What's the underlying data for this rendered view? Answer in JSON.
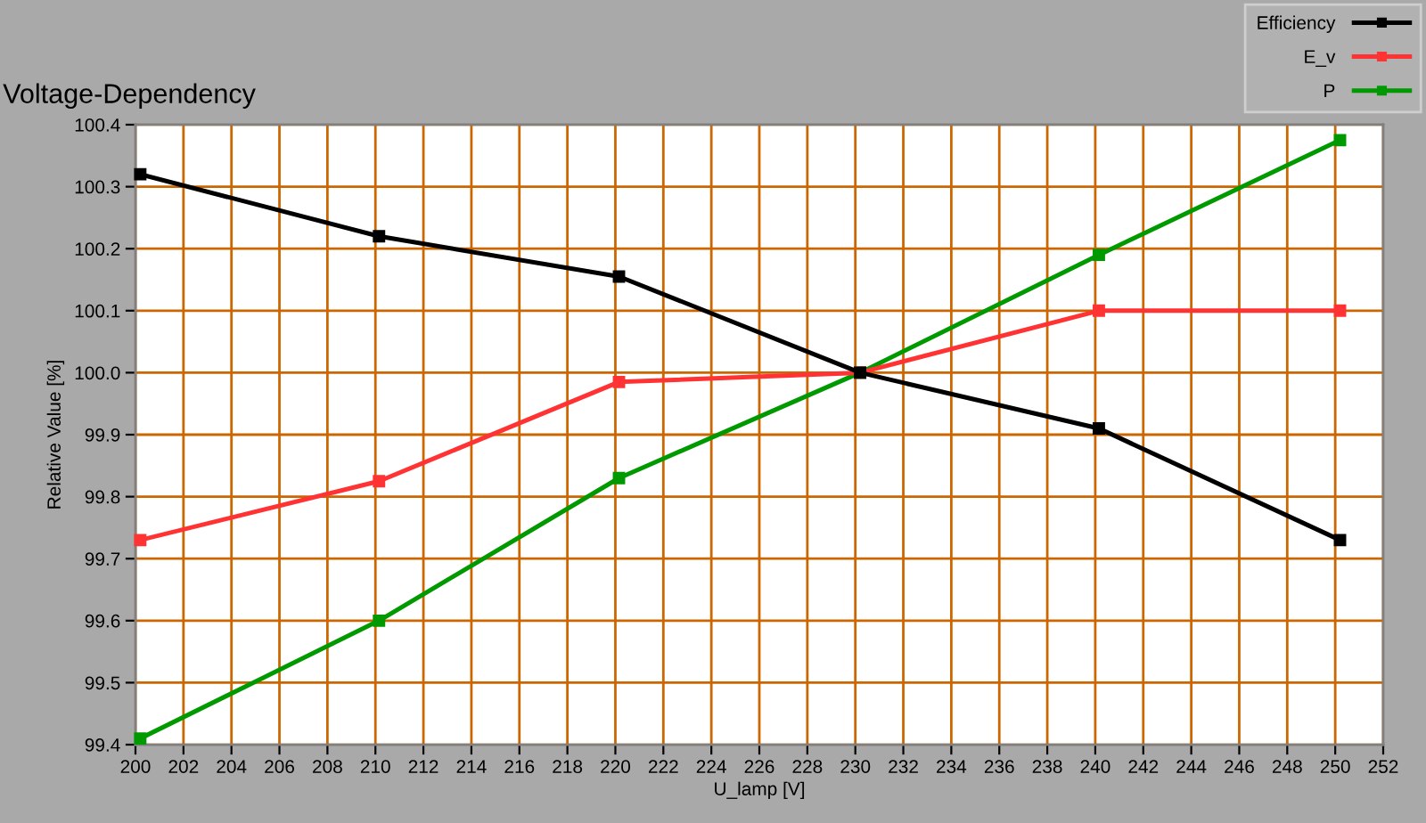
{
  "chart_data": {
    "type": "line",
    "title": "Voltage-Dependency",
    "xlabel": "U_lamp [V]",
    "ylabel": "Relative Value [%]",
    "x": [
      200.2,
      210.15,
      220.15,
      230.2,
      240.15,
      250.2
    ],
    "series": [
      {
        "name": "Efficiency",
        "color": "#000000",
        "values": [
          100.32,
          100.22,
          100.155,
          100.0,
          99.91,
          99.73
        ]
      },
      {
        "name": "E_v",
        "color": "#ff3333",
        "values": [
          99.73,
          99.825,
          99.985,
          100.0,
          100.1,
          100.1
        ]
      },
      {
        "name": "P",
        "color": "#009900",
        "values": [
          99.41,
          99.6,
          99.83,
          100.0,
          100.19,
          100.375
        ]
      }
    ],
    "xlim": [
      200,
      252
    ],
    "xticks": [
      200,
      202,
      204,
      206,
      208,
      210,
      212,
      214,
      216,
      218,
      220,
      222,
      224,
      226,
      228,
      230,
      232,
      234,
      236,
      238,
      240,
      242,
      244,
      246,
      248,
      250,
      252
    ],
    "ylim": [
      99.4,
      100.4
    ],
    "yticks": [
      99.4,
      99.5,
      99.6,
      99.7,
      99.8,
      99.9,
      {
        "value": 100,
        "label": "100.0"
      },
      100.1,
      100.2,
      100.3,
      100.4
    ],
    "grid": true,
    "legend": "top right",
    "marker": "square",
    "line_style": "solid"
  }
}
